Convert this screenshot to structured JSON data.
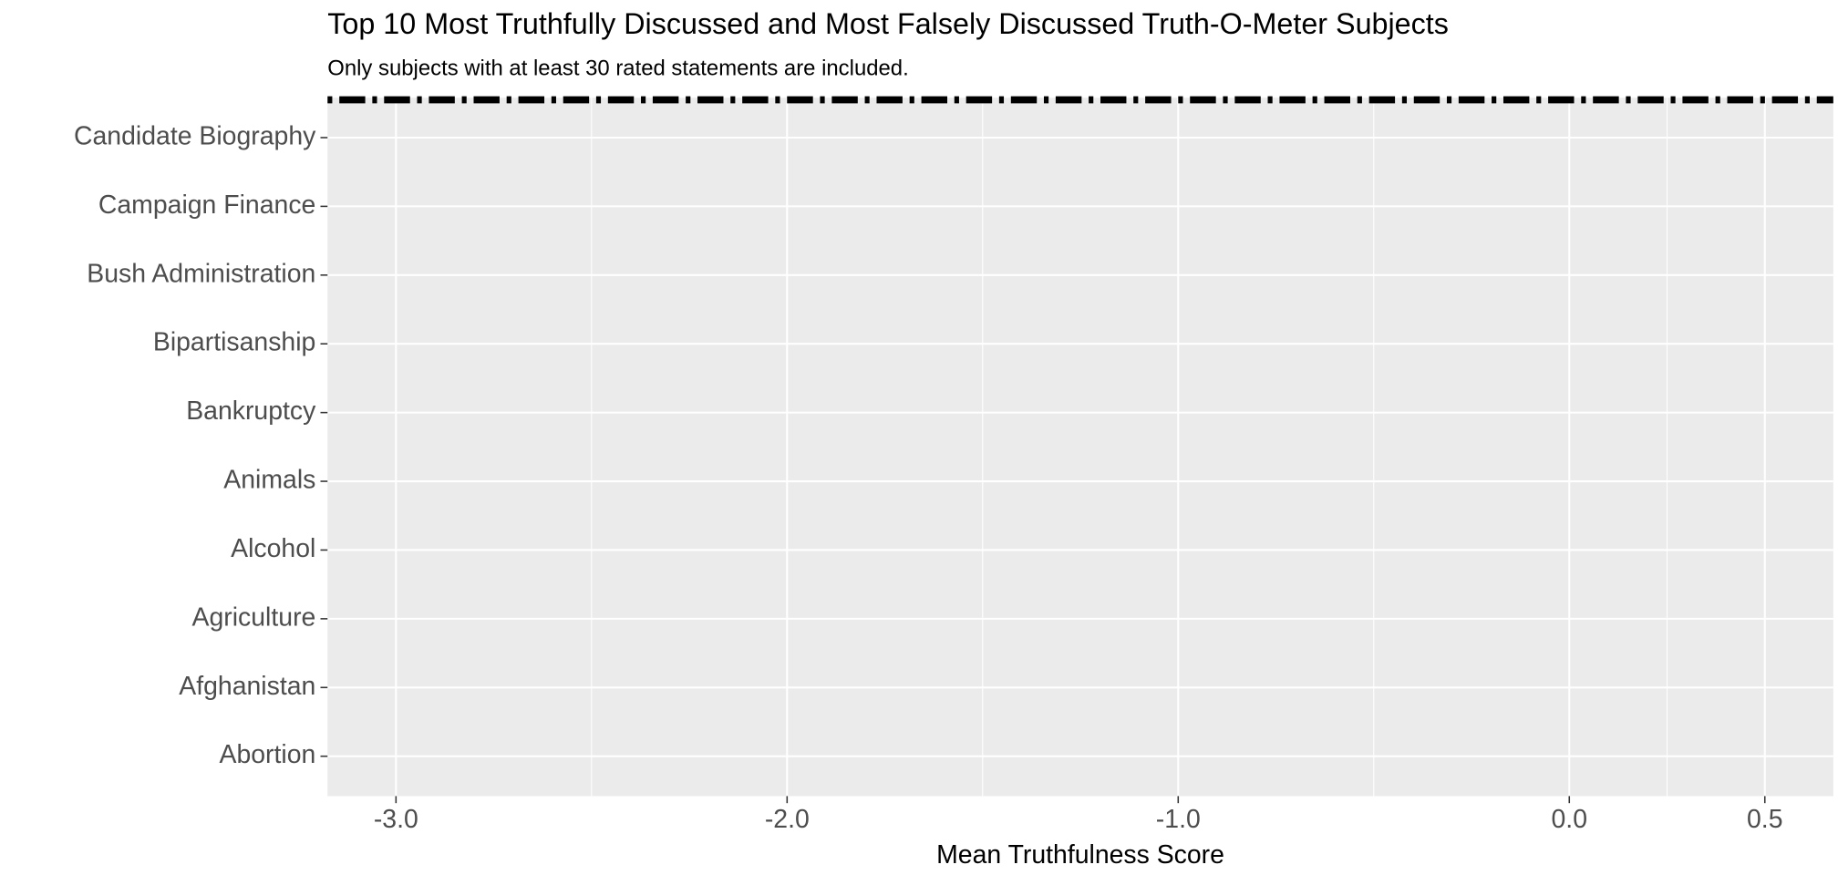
{
  "chart_data": {
    "type": "blank",
    "title": "Top 10 Most Truthfully Discussed and Most Falsely Discussed Truth-O-Meter Subjects",
    "subtitle": "Only subjects with at least 30 rated statements are included.",
    "xlabel": "Mean Truthfulness Score",
    "categories": [
      "Abortion",
      "Afghanistan",
      "Agriculture",
      "Alcohol",
      "Animals",
      "Bankruptcy",
      "Bipartisanship",
      "Bush Administration",
      "Campaign Finance",
      "Candidate Biography"
    ],
    "xlim": [
      -3.175,
      0.675
    ],
    "xticks": [
      {
        "value": -3,
        "label": "-3.0"
      },
      {
        "value": -2,
        "label": "-2.0"
      },
      {
        "value": -1,
        "label": "-1.0"
      },
      {
        "value": 0,
        "label": "0.0"
      },
      0.5
    ],
    "xminor": [
      -2.5,
      -1.5,
      -0.5,
      0.25
    ],
    "ylim": [
      0.42,
      10.58
    ],
    "hline": {
      "y": 10.55,
      "color": "#000000",
      "linetype": "dotdash"
    },
    "grid": true,
    "panel_color": "#ebebeb"
  }
}
